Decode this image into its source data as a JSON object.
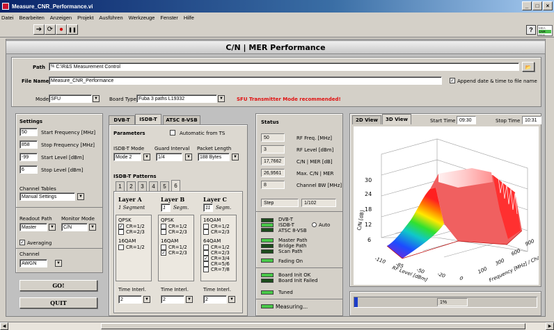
{
  "window": {
    "title": "Measure_CNR_Performance.vi",
    "minimize": "_",
    "maximize": "□",
    "close": "×"
  },
  "menu": [
    "Datei",
    "Bearbeiten",
    "Anzeigen",
    "Projekt",
    "Ausführen",
    "Werkzeuge",
    "Fenster",
    "Hilfe"
  ],
  "toolbar": {
    "run": "➔",
    "run_cont": "⟳",
    "stop": "●",
    "pause": "❚❚",
    "help": "?",
    "logo_lines": [
      "MEA",
      "CNR",
      "PER"
    ]
  },
  "banner": "C/N | MER Performance",
  "path": {
    "label": "Path",
    "prefix": "%",
    "value": "C:\\R&S Measurement Control",
    "browse": "📂"
  },
  "file_name": {
    "label": "File Name",
    "value": "Measure_CNR_Performance",
    "append_label": "Append date & time to file name",
    "append_checked": true
  },
  "mode": {
    "label": "Mode",
    "value": "SFU"
  },
  "board_type": {
    "label": "Board Type",
    "value": "Fuba 3 paths L19332"
  },
  "warning": "SFU Transmitter Mode recommended!",
  "settings": {
    "title": "Settings",
    "rows": [
      {
        "value": "50",
        "label": "Start Frequency [MHz]"
      },
      {
        "value": "858",
        "label": "Stop Frequency [MHz]"
      },
      {
        "value": "-99",
        "label": "Start Level [dBm]"
      },
      {
        "value": "6",
        "label": "Stop Level [dBm]"
      }
    ],
    "channel_tables_label": "Channel Tables",
    "channel_tables_value": "Manual Settings",
    "readout_label": "Readout Path",
    "readout_value": "Master",
    "monitor_label": "Monitor Mode",
    "monitor_value": "C/N",
    "averaging_label": "Averaging",
    "averaging_checked": true,
    "channel_label": "Channel",
    "channel_value": "AWGN"
  },
  "buttons": {
    "go": "GO!",
    "quit": "QUIT"
  },
  "std_tabs": [
    "DVB-T",
    "ISDB-T",
    "ATSC 8-VSB"
  ],
  "std_active": 1,
  "params": {
    "title": "Parameters",
    "auto_label": "Automatic from TS",
    "mode_label": "ISDB-T Mode",
    "mode_value": "Mode 2",
    "guard_label": "Guard Interval",
    "guard_value": "1/4",
    "packet_label": "Packet Length",
    "packet_value": "188 Bytes"
  },
  "patterns": {
    "title": "ISDB-T Patterns",
    "tabs": [
      "1",
      "2",
      "3",
      "4",
      "5",
      "6"
    ],
    "active": 5,
    "layers": [
      {
        "name": "Layer A",
        "segm_value": "1 Segment",
        "segm_unit": "",
        "mods": [
          {
            "name": "QPSK",
            "crs": [
              {
                "l": "CR=1/2",
                "c": true
              },
              {
                "l": "CR=2/3",
                "c": false
              }
            ]
          },
          {
            "name": "16QAM",
            "crs": [
              {
                "l": "CR=1/2",
                "c": false
              }
            ]
          }
        ],
        "ti_label": "Time Interl.",
        "ti_value": "2"
      },
      {
        "name": "Layer B",
        "segm_value": "1",
        "segm_unit": "Segm.",
        "mods": [
          {
            "name": "QPSK",
            "crs": [
              {
                "l": "CR=1/2",
                "c": false
              },
              {
                "l": "CR=2/3",
                "c": false
              }
            ]
          },
          {
            "name": "16QAM",
            "crs": [
              {
                "l": "CR=1/2",
                "c": false
              },
              {
                "l": "CR=2/3",
                "c": true
              }
            ]
          }
        ],
        "ti_label": "Time Interl.",
        "ti_value": "2"
      },
      {
        "name": "Layer C",
        "segm_value": "11",
        "segm_unit": "Segm.",
        "mods": [
          {
            "name": "16QAM",
            "crs": [
              {
                "l": "CR=1/2",
                "c": false
              },
              {
                "l": "CR=2/3",
                "c": false
              }
            ]
          },
          {
            "name": "64QAM",
            "crs": [
              {
                "l": "CR=1/2",
                "c": false
              },
              {
                "l": "CR=2/3",
                "c": false
              },
              {
                "l": "CR=3/4",
                "c": true
              },
              {
                "l": "CR=5/6",
                "c": false
              },
              {
                "l": "CR=7/8",
                "c": false
              }
            ]
          }
        ],
        "ti_label": "Time Interl.",
        "ti_value": "2"
      }
    ]
  },
  "status": {
    "title": "Status",
    "rows": [
      {
        "value": "50",
        "label": "RF Freq. [MHz]"
      },
      {
        "value": "3",
        "label": "RF Level [dBm]"
      },
      {
        "value": "17,7662",
        "label": "C/N | MER [dB]"
      },
      {
        "value": "26,9561",
        "label": "Max. C/N | MER"
      },
      {
        "value": "8",
        "label": "Channel BW [MHz]"
      }
    ],
    "step_label": "Step",
    "step_value": "1/102",
    "std_leds": [
      "DVB-T",
      "ISDB-T",
      "ATSC 8-VSB"
    ],
    "auto_label": "Auto",
    "path_leds": [
      "Master Path",
      "Bridge Path",
      "Scan Path"
    ],
    "fading_label": "Fading On",
    "board_ok": "Board Init OK",
    "board_failed": "Board Init Failed",
    "tuned": "Tuned",
    "measuring": "Measuring..."
  },
  "view": {
    "tabs": [
      "2D View",
      "3D View"
    ],
    "active": 1,
    "start_label": "Start Time",
    "start_value": "09:30",
    "stop_label": "Stop Time",
    "stop_value": "10:31",
    "z_label": "C/N [dB]",
    "x_label": "RF Level [dBm]",
    "y_label": "Frequency [MHz] / Channel",
    "z_ticks": [
      "30",
      "24",
      "18",
      "12",
      "6"
    ],
    "x_ticks": [
      "-110",
      "-85",
      "-50",
      "-20",
      "0"
    ],
    "y_ticks": [
      "100",
      "300",
      "600",
      "900"
    ]
  },
  "progress": {
    "value": 1,
    "text": "1%"
  }
}
